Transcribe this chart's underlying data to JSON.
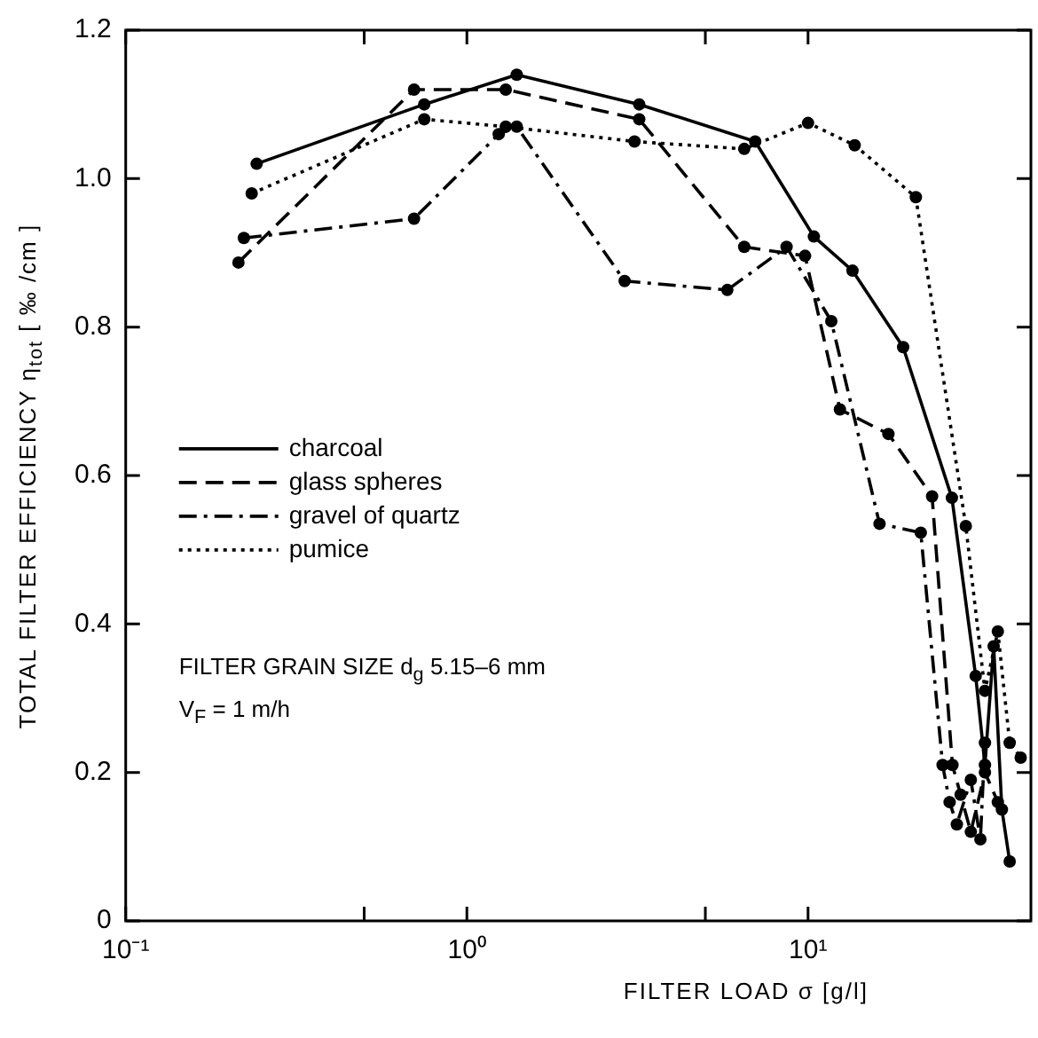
{
  "chart_data": {
    "type": "line",
    "xlabel": "FILTER LOAD  σ    [g/l]",
    "ylabel": "TOTAL FILTER EFFICIENCY   η$_{tot}$   [ ‰ /cm ]",
    "log": "x",
    "xlim": [
      0.1,
      45
    ],
    "ylim": [
      0,
      1.2
    ],
    "xticks": [
      {
        "value": 0.1,
        "label": "10⁻¹"
      },
      {
        "value": 0.5,
        "label": null
      },
      {
        "value": 1,
        "label": "10⁰"
      },
      {
        "value": 5,
        "label": null
      },
      {
        "value": 10,
        "label": "10¹"
      }
    ],
    "yticks": [
      0,
      0.2,
      0.4,
      0.6,
      0.8,
      {
        "value": 1,
        "label": "1.0"
      },
      1.2
    ],
    "grid": false,
    "legend": "center left",
    "marker": "circle",
    "annotations": [
      "FILTER GRAIN SIZE  d$_{g}$  5.15–6 mm",
      "V$_{F}$ = 1 m/h"
    ],
    "series": [
      {
        "name": "charcoal",
        "color": "#000000",
        "line_style": "solid",
        "x": [
          0.242,
          0.75,
          1.4,
          3.2,
          7,
          10.4,
          13.5,
          19,
          26.4,
          31,
          33,
          35,
          37,
          39
        ],
        "values": [
          1.02,
          1.1,
          1.14,
          1.1,
          1.05,
          0.922,
          0.876,
          0.773,
          0.57,
          0.33,
          0.21,
          0.37,
          0.15,
          0.08
        ]
      },
      {
        "name": "glass spheres",
        "color": "#000000",
        "line_style": "dashed",
        "x": [
          0.214,
          0.7,
          1.3,
          3.2,
          6.5,
          9.8,
          12.4,
          17.2,
          23.1,
          26.5,
          28,
          30,
          33,
          36
        ],
        "values": [
          0.887,
          1.12,
          1.12,
          1.08,
          0.908,
          0.896,
          0.689,
          0.656,
          0.572,
          0.21,
          0.17,
          0.12,
          0.2,
          0.16
        ]
      },
      {
        "name": "gravel of quartz",
        "color": "#000000",
        "line_style": "dashdot",
        "x": [
          0.222,
          0.7,
          1.24,
          1.4,
          2.9,
          5.8,
          8.65,
          11.7,
          16.2,
          21.4,
          24.8,
          26,
          27.3,
          30,
          32,
          33
        ],
        "values": [
          0.92,
          0.946,
          1.06,
          1.07,
          0.862,
          0.85,
          0.908,
          0.808,
          0.535,
          0.523,
          0.21,
          0.16,
          0.13,
          0.19,
          0.11,
          0.24
        ]
      },
      {
        "name": "pumice",
        "color": "#000000",
        "line_style": "dotted",
        "x": [
          0.234,
          0.75,
          1.3,
          3.1,
          6.5,
          10,
          13.7,
          20.7,
          29,
          33,
          36,
          39,
          42
        ],
        "values": [
          0.98,
          1.08,
          1.07,
          1.05,
          1.04,
          1.075,
          1.045,
          0.975,
          0.532,
          0.31,
          0.39,
          0.24,
          0.22
        ]
      }
    ]
  }
}
